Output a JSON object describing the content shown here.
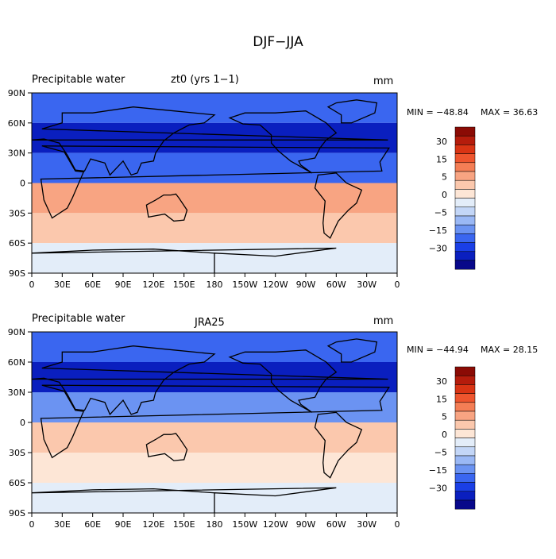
{
  "page_title": "DJF−JJA",
  "chart_data": [
    {
      "type": "heatmap",
      "title": "Precipitable water",
      "subtitle": "zt0 (yrs 1−1)",
      "units": "mm",
      "min_label": "MIN = −48.84",
      "max_label": "MAX =   36.63",
      "min": -48.84,
      "max": 36.63,
      "lon_ticks": [
        "0",
        "30E",
        "60E",
        "90E",
        "120E",
        "150E",
        "180",
        "150W",
        "120W",
        "90W",
        "60W",
        "30W",
        "0"
      ],
      "lat_ticks": [
        "90N",
        "60N",
        "30N",
        "0",
        "30S",
        "60S",
        "90S"
      ],
      "colorbar_levels": [
        -30,
        -15,
        -5,
        0,
        5,
        15,
        30
      ],
      "colorbar_labels": [
        "30",
        "15",
        "5",
        "0",
        "−5",
        "−15",
        "−30"
      ],
      "latitude_bands": [
        {
          "lat_range": [
            60,
            90
          ],
          "value": -12
        },
        {
          "lat_range": [
            30,
            60
          ],
          "value": -22
        },
        {
          "lat_range": [
            0,
            30
          ],
          "value": -10
        },
        {
          "lat_range": [
            -30,
            0
          ],
          "value": 12
        },
        {
          "lat_range": [
            -60,
            -30
          ],
          "value": 6
        },
        {
          "lat_range": [
            -90,
            -60
          ],
          "value": 2
        }
      ]
    },
    {
      "type": "heatmap",
      "title": "Precipitable water",
      "subtitle": "JRA25",
      "units": "mm",
      "min_label": "MIN = −44.94",
      "max_label": "MAX =   28.15",
      "min": -44.94,
      "max": 28.15,
      "lon_ticks": [
        "0",
        "30E",
        "60E",
        "90E",
        "120E",
        "150E",
        "180",
        "150W",
        "120W",
        "90W",
        "60W",
        "30W",
        "0"
      ],
      "lat_ticks": [
        "90N",
        "60N",
        "30N",
        "0",
        "30S",
        "60S",
        "90S"
      ],
      "colorbar_levels": [
        -30,
        -15,
        -5,
        0,
        5,
        15,
        30
      ],
      "colorbar_labels": [
        "30",
        "15",
        "5",
        "0",
        "−5",
        "−15",
        "−30"
      ],
      "latitude_bands": [
        {
          "lat_range": [
            60,
            90
          ],
          "value": -10
        },
        {
          "lat_range": [
            30,
            60
          ],
          "value": -20
        },
        {
          "lat_range": [
            0,
            30
          ],
          "value": -8
        },
        {
          "lat_range": [
            -30,
            0
          ],
          "value": 10
        },
        {
          "lat_range": [
            -60,
            -30
          ],
          "value": 5
        },
        {
          "lat_range": [
            -90,
            -60
          ],
          "value": 2
        }
      ]
    }
  ],
  "palette": [
    "#08088a",
    "#0a1fbf",
    "#1a3fe6",
    "#3a66f0",
    "#6b93f2",
    "#9ab8f5",
    "#c3d6f7",
    "#e3edf9",
    "#fde6d6",
    "#fbc8ad",
    "#f8a482",
    "#f47e55",
    "#ee552e",
    "#d93414",
    "#b51c0c",
    "#8b0b05"
  ]
}
